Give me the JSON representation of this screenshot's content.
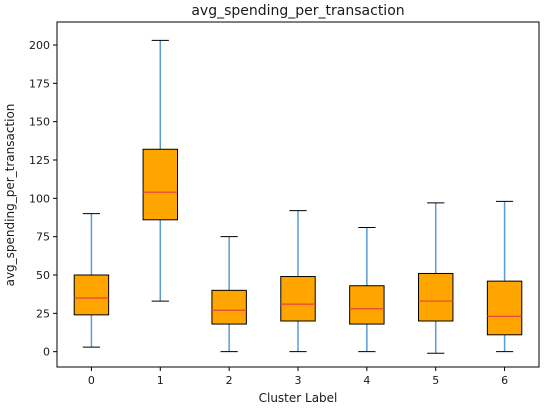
{
  "chart_data": {
    "type": "boxplot",
    "title": "avg_spending_per_transaction",
    "xlabel": "Cluster Label",
    "ylabel": "avg_spending_per_transaction",
    "ylim": [
      -10,
      215
    ],
    "yticks": [
      0,
      25,
      50,
      75,
      100,
      125,
      150,
      175,
      200
    ],
    "grid": false,
    "categories": [
      "0",
      "1",
      "2",
      "3",
      "4",
      "5",
      "6"
    ],
    "boxes": [
      {
        "category": "0",
        "whisker_low": 3,
        "q1": 24,
        "median": 35,
        "q3": 50,
        "whisker_high": 90
      },
      {
        "category": "1",
        "whisker_low": 33,
        "q1": 86,
        "median": 104,
        "q3": 132,
        "whisker_high": 203
      },
      {
        "category": "2",
        "whisker_low": 0,
        "q1": 18,
        "median": 27,
        "q3": 40,
        "whisker_high": 75
      },
      {
        "category": "3",
        "whisker_low": 0,
        "q1": 20,
        "median": 31,
        "q3": 49,
        "whisker_high": 92
      },
      {
        "category": "4",
        "whisker_low": 0,
        "q1": 18,
        "median": 28,
        "q3": 43,
        "whisker_high": 81
      },
      {
        "category": "5",
        "whisker_low": -1,
        "q1": 20,
        "median": 33,
        "q3": 51,
        "whisker_high": 97
      },
      {
        "category": "6",
        "whisker_low": 0,
        "q1": 11,
        "median": 23,
        "q3": 46,
        "whisker_high": 98
      }
    ],
    "colors": {
      "box_fill": "#ffa500",
      "box_edge": "#000000",
      "median": "#e8453c",
      "whisker": "#5a9bd4",
      "cap": "#000000"
    }
  }
}
